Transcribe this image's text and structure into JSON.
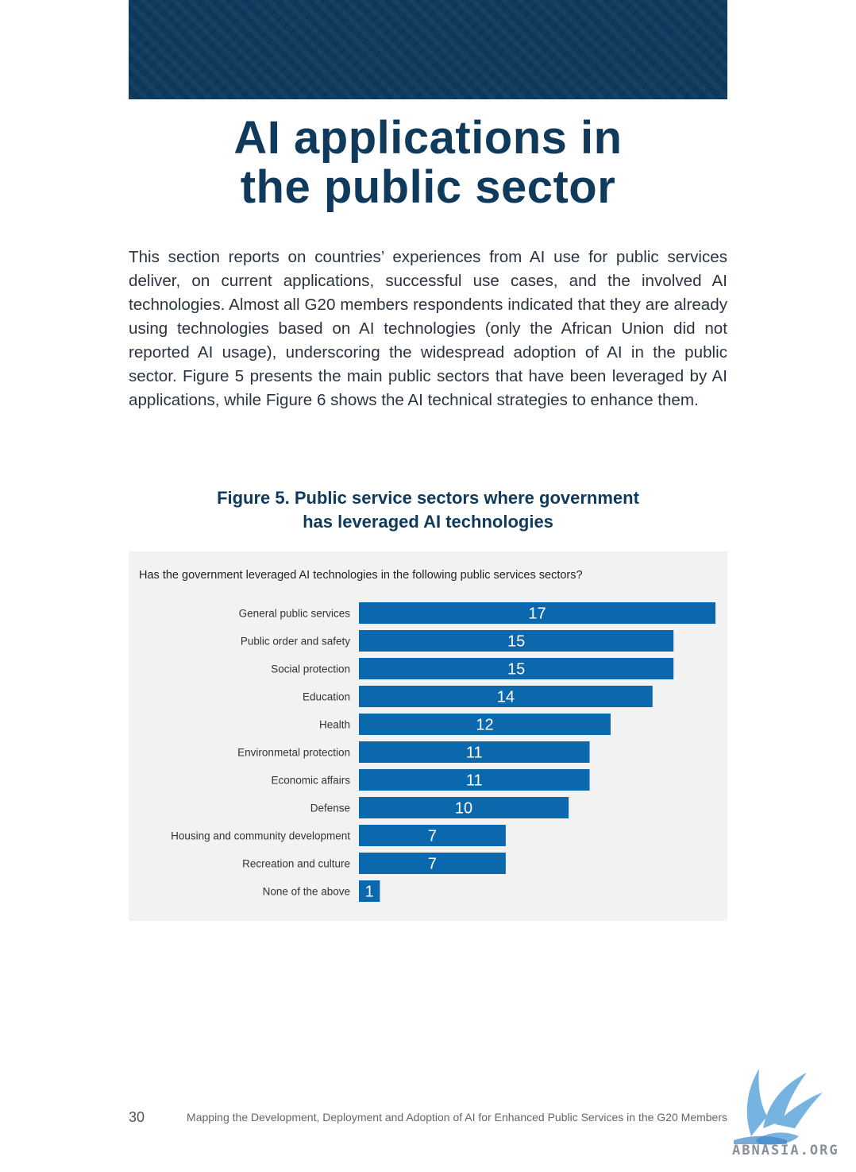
{
  "page": {
    "title_line1": "AI applications in",
    "title_line2": "the public sector",
    "intro": "This section reports on countries’ experiences from AI use for public services deliver, on current applications, successful use cases, and the involved AI technologies. Almost all G20 members respondents indicated that they are already using technologies based on AI technologies (only the African Union did not reported AI usage), underscoring the widespread adoption of AI in the public sector. Figure 5 presents the main public sectors that have been leveraged by AI applications, while Figure 6 shows the AI technical strategies to enhance them.",
    "figure_title_line1": "Figure 5. Public service sectors where government",
    "figure_title_line2": "has leveraged AI technologies"
  },
  "footer": {
    "page_number": "30",
    "document_title": "Mapping the Development, Deployment and Adoption of AI for Enhanced Public Services in the G20 Members",
    "watermark": "ABNASIA.ORG"
  },
  "colors": {
    "header_band": "#0e3a5e",
    "title": "#0f3a5c",
    "bar": "#0b68ad",
    "panel": "#f2f2f2"
  },
  "chart_data": {
    "type": "bar",
    "orientation": "horizontal",
    "title": "Has the government leveraged AI technologies in the following public services sectors?",
    "categories": [
      "General public services",
      "Public order and safety",
      "Social protection",
      "Education",
      "Health",
      "Environmetal protection",
      "Economic affairs",
      "Defense",
      "Housing and community development",
      "Recreation and culture",
      "None of the above"
    ],
    "values": [
      17,
      15,
      15,
      14,
      12,
      11,
      11,
      10,
      7,
      7,
      1
    ],
    "data_labels": true,
    "grid": false
  }
}
